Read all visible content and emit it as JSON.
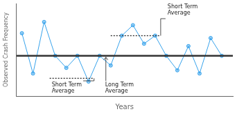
{
  "chart_data": {
    "type": "line",
    "xlabel": "Years",
    "ylabel": "Observed Crash Frequency",
    "x": [
      0,
      1,
      2,
      3,
      4,
      5,
      6,
      7,
      8,
      9,
      10,
      11,
      12,
      13,
      14,
      15,
      16,
      17,
      18
    ],
    "values": [
      0.78,
      0.28,
      0.92,
      0.5,
      0.35,
      0.5,
      0.18,
      0.5,
      0.38,
      0.75,
      0.88,
      0.65,
      0.75,
      0.5,
      0.32,
      0.62,
      0.28,
      0.72,
      0.5
    ],
    "marker": "circle",
    "xlim": [
      -0.5,
      19.0
    ],
    "ylim": [
      0.0,
      1.15
    ],
    "tick_labels": false,
    "grid": false,
    "long_term_average": {
      "y": 0.5,
      "label": "Long Term\nAverage",
      "line_style": "solid"
    },
    "short_term_averages": [
      {
        "x_start": 2.5,
        "x_end": 6.5,
        "y": 0.22,
        "label": "Short Term\nAverage",
        "line_style": "dotted"
      },
      {
        "x_start": 8.0,
        "x_end": 12.5,
        "y": 0.75,
        "label": "Short Term\nAverage",
        "line_style": "dotted"
      }
    ]
  }
}
